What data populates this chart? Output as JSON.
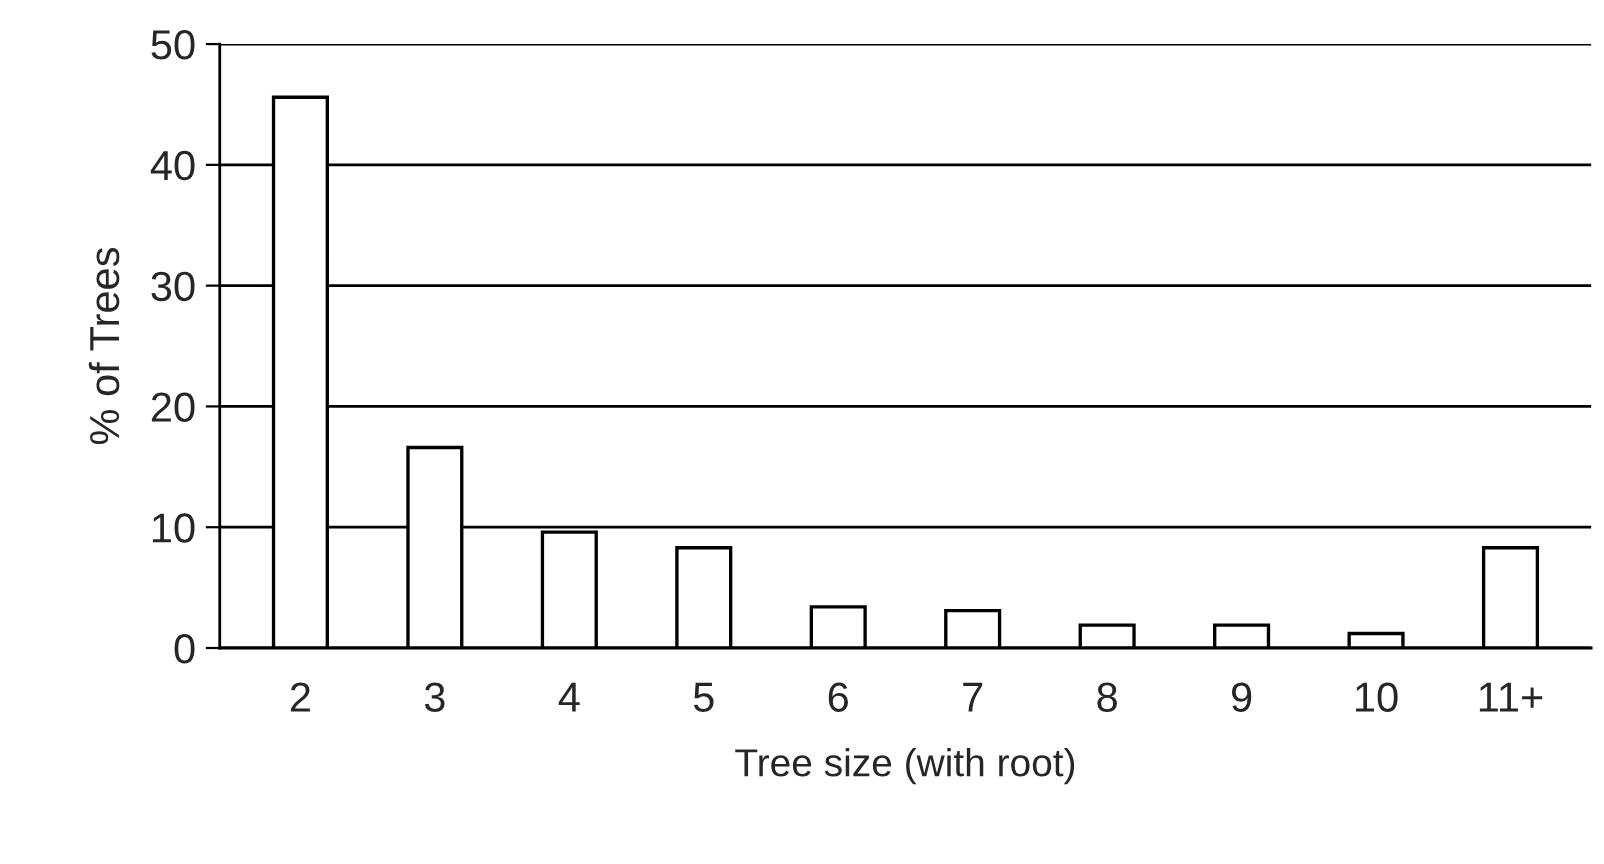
{
  "chart_data": {
    "type": "bar",
    "xlabel": "Tree size (with root)",
    "ylabel": "% of Trees",
    "categories": [
      "2",
      "3",
      "4",
      "5",
      "6",
      "7",
      "8",
      "9",
      "10",
      "11+"
    ],
    "values": [
      45.6,
      16.6,
      9.6,
      8.3,
      3.4,
      3.1,
      1.9,
      1.9,
      1.2,
      8.3
    ],
    "color": "#ffffff",
    "ylim": [
      0,
      50
    ],
    "yticks": [
      0,
      10,
      20,
      30,
      40,
      50
    ],
    "grid": "y"
  }
}
